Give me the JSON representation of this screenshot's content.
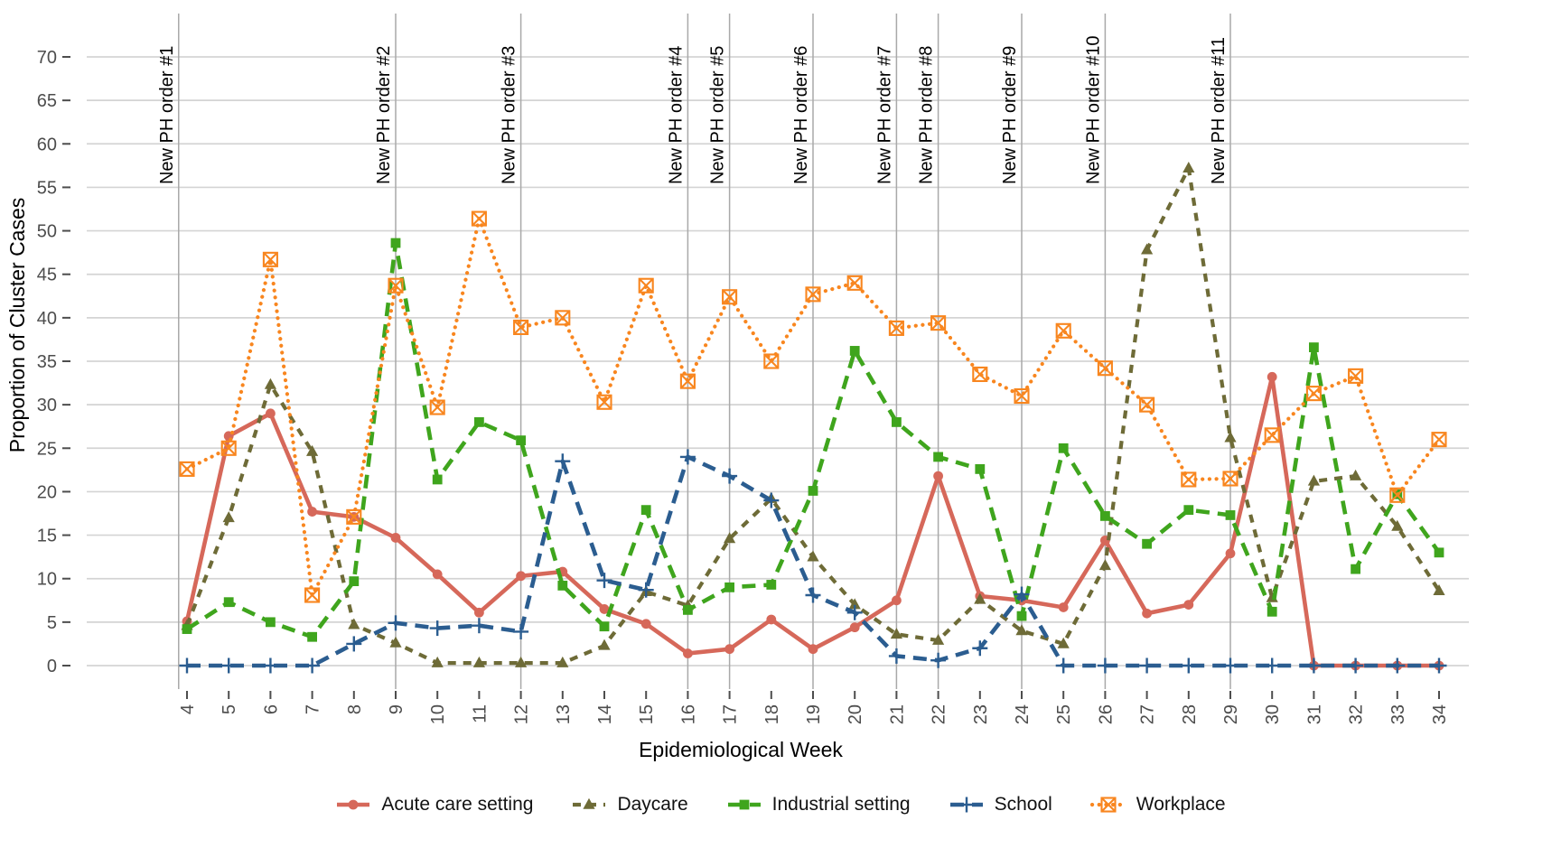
{
  "chart_data": {
    "type": "line",
    "title": "",
    "xlabel": "Epidemiological Week",
    "ylabel": "Proportion of Cluster Cases",
    "x": [
      4,
      5,
      6,
      7,
      8,
      9,
      10,
      11,
      12,
      13,
      14,
      15,
      16,
      17,
      18,
      19,
      20,
      21,
      22,
      23,
      24,
      25,
      26,
      27,
      28,
      29,
      30,
      31,
      32,
      33,
      34
    ],
    "ylim": [
      0,
      70
    ],
    "ytick_step": 5,
    "grid": "horizontal-major-only",
    "legend_position": "bottom",
    "series": [
      {
        "name": "Acute care setting",
        "color": "#d6685a",
        "linestyle": "solid",
        "marker": "circle",
        "values": [
          5.1,
          26.4,
          29.0,
          17.7,
          17.1,
          14.7,
          10.5,
          6.1,
          10.3,
          10.8,
          6.5,
          4.8,
          1.4,
          1.9,
          5.3,
          1.9,
          4.4,
          7.5,
          21.8,
          8.0,
          7.5,
          6.7,
          14.4,
          6.0,
          7.0,
          12.9,
          33.2,
          0,
          0,
          0,
          0
        ]
      },
      {
        "name": "Daycare",
        "color": "#6e6b37",
        "linestyle": "dashed",
        "marker": "triangle",
        "values": [
          4.6,
          17.0,
          32.3,
          24.6,
          4.7,
          2.6,
          0.3,
          0.3,
          0.3,
          0.3,
          2.3,
          8.5,
          6.9,
          14.6,
          19.2,
          12.5,
          7.0,
          3.6,
          2.9,
          7.6,
          4.0,
          2.5,
          11.5,
          47.8,
          57.2,
          26.2,
          7.8,
          21.2,
          21.8,
          16.0,
          8.6
        ]
      },
      {
        "name": "Industrial setting",
        "color": "#3fa51d",
        "linestyle": "longdash",
        "marker": "square",
        "values": [
          4.2,
          7.3,
          5.0,
          3.3,
          9.7,
          48.6,
          21.4,
          28.0,
          25.9,
          9.2,
          4.5,
          17.9,
          6.4,
          9.0,
          9.3,
          20.1,
          36.2,
          28.0,
          24.0,
          22.6,
          5.7,
          25.0,
          17.2,
          14.0,
          17.9,
          17.3,
          6.2,
          36.6,
          11.1,
          19.7,
          13.0
        ]
      },
      {
        "name": "School",
        "color": "#2b5d90",
        "linestyle": "longdash",
        "marker": "plus",
        "values": [
          0,
          0,
          0,
          0,
          2.5,
          4.9,
          4.3,
          4.6,
          3.9,
          23.5,
          9.8,
          8.7,
          24.0,
          21.8,
          19.0,
          8.1,
          6.1,
          1.1,
          0.6,
          2.0,
          8.2,
          0,
          0,
          0,
          0,
          0,
          0,
          0,
          0,
          0,
          0
        ]
      },
      {
        "name": "Workplace",
        "color": "#f8861f",
        "linestyle": "dotted",
        "marker": "crossed-square",
        "values": [
          22.6,
          25.0,
          46.7,
          8.1,
          17.1,
          43.7,
          29.7,
          51.4,
          38.9,
          40.0,
          30.3,
          43.7,
          32.7,
          42.4,
          35.0,
          42.7,
          44.0,
          38.8,
          39.4,
          33.5,
          31.0,
          38.5,
          34.2,
          30.0,
          21.4,
          21.5,
          26.5,
          31.3,
          33.3,
          19.6,
          26.0
        ]
      }
    ],
    "annotations": [
      {
        "label": "New PH order #1",
        "week": 3.8
      },
      {
        "label": "New PH order #2",
        "week": 9
      },
      {
        "label": "New PH order #3",
        "week": 12
      },
      {
        "label": "New PH order #4",
        "week": 16
      },
      {
        "label": "New PH order #5",
        "week": 17
      },
      {
        "label": "New PH order #6",
        "week": 19
      },
      {
        "label": "New PH order #7",
        "week": 21
      },
      {
        "label": "New PH order #8",
        "week": 22
      },
      {
        "label": "New PH order #9",
        "week": 24
      },
      {
        "label": "New PH order #10",
        "week": 26
      },
      {
        "label": "New PH order #11",
        "week": 29
      }
    ]
  },
  "colors": {
    "background": "#ffffff",
    "gridline": "#d4d4d4",
    "annotation_line": "#a9a9a9",
    "tick_text": "#4d4d4d",
    "axis_title_text": "#000000",
    "annotation_text": "#000000"
  }
}
